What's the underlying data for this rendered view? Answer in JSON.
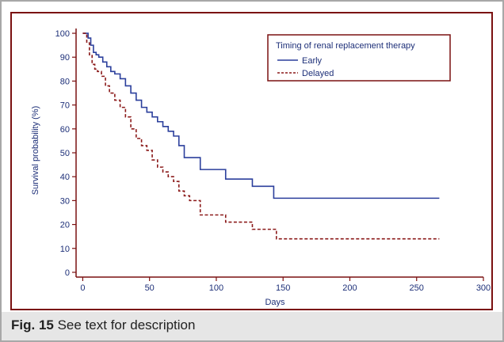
{
  "figure": {
    "label": "Fig. 15",
    "caption": "See text for description"
  },
  "chart_data": {
    "type": "line",
    "title": "",
    "xlabel": "Days",
    "ylabel": "Survival probability (%)",
    "xlim": [
      -5,
      300
    ],
    "ylim": [
      -2,
      102
    ],
    "xticks": [
      0,
      50,
      100,
      150,
      200,
      250,
      300
    ],
    "yticks": [
      0,
      10,
      20,
      30,
      40,
      50,
      60,
      70,
      80,
      90,
      100
    ],
    "grid": false,
    "legend": {
      "title": "Timing of renal replacement therapy",
      "placement": "top-right"
    },
    "colors": {
      "frame": "#7a1010",
      "axis_text": "#1d2f78"
    },
    "series": [
      {
        "name": "Early",
        "style": "solid",
        "color": "#2b3f9c",
        "step": true,
        "x": [
          0,
          4,
          6,
          8,
          10,
          12,
          15,
          18,
          21,
          24,
          28,
          32,
          36,
          40,
          44,
          48,
          52,
          56,
          60,
          64,
          68,
          72,
          76,
          80,
          88,
          107,
          127,
          143,
          267
        ],
        "y": [
          100,
          98,
          95,
          92,
          91,
          90,
          88,
          86,
          84,
          83,
          81,
          78,
          75,
          72,
          69,
          67,
          65,
          63,
          61,
          59,
          57,
          53,
          48,
          48,
          43,
          39,
          36,
          31,
          31
        ]
      },
      {
        "name": "Delayed",
        "style": "dashed",
        "color": "#8b1a1a",
        "step": true,
        "x": [
          0,
          3,
          5,
          7,
          9,
          11,
          14,
          17,
          20,
          24,
          28,
          32,
          36,
          40,
          44,
          48,
          52,
          56,
          60,
          64,
          68,
          72,
          76,
          80,
          88,
          107,
          127,
          145,
          267
        ],
        "y": [
          100,
          96,
          91,
          87,
          85,
          84,
          82,
          78,
          75,
          72,
          69,
          65,
          60,
          56,
          53,
          51,
          47,
          44,
          42,
          40,
          38,
          34,
          32,
          30,
          24,
          21,
          18,
          14,
          14
        ]
      }
    ]
  }
}
